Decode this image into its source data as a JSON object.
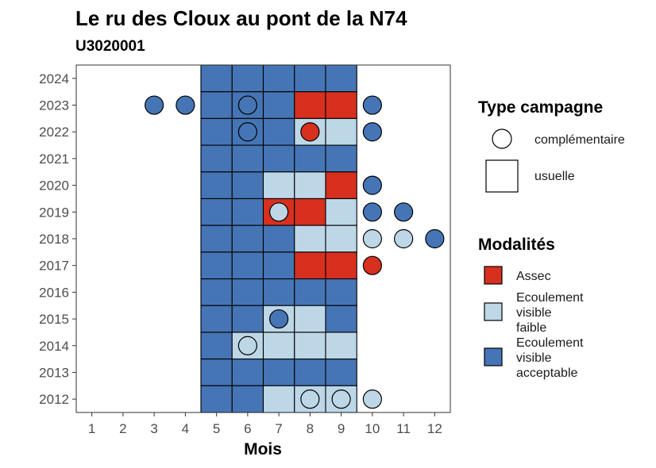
{
  "chart_data": {
    "type": "heatmap",
    "title": "Le ru des Cloux au pont de la N74",
    "subtitle": "U3020001",
    "xlabel": "Mois",
    "ylabel": "",
    "x_ticks": [
      1,
      2,
      3,
      4,
      5,
      6,
      7,
      8,
      9,
      10,
      11,
      12
    ],
    "y_ticks": [
      2012,
      2013,
      2014,
      2015,
      2016,
      2017,
      2018,
      2019,
      2020,
      2021,
      2022,
      2023,
      2024
    ],
    "xlim": [
      0.5,
      12.5
    ],
    "ylim": [
      2011.5,
      2024.5
    ],
    "colors": {
      "assec": "#d7301f",
      "faible": "#bdd7e7",
      "acceptable": "#4575b4"
    },
    "legend_type": {
      "title": "Type campagne",
      "items": [
        {
          "key": "complementaire",
          "label": "complémentaire",
          "shape": "circle"
        },
        {
          "key": "usuelle",
          "label": "usuelle",
          "shape": "square"
        }
      ]
    },
    "legend_modalites": {
      "title": "Modalités",
      "items": [
        {
          "key": "assec",
          "lines": [
            "Assec"
          ]
        },
        {
          "key": "faible",
          "lines": [
            "Ecoulement",
            "visible",
            "faible"
          ]
        },
        {
          "key": "acceptable",
          "lines": [
            "Ecoulement",
            "visible",
            "acceptable"
          ]
        }
      ]
    },
    "usuelle": [
      {
        "year": 2024,
        "months": {
          "5": "acceptable",
          "6": "acceptable",
          "7": "acceptable",
          "8": "acceptable",
          "9": "acceptable"
        }
      },
      {
        "year": 2023,
        "months": {
          "5": "acceptable",
          "6": "acceptable",
          "7": "acceptable",
          "8": "assec",
          "9": "assec"
        }
      },
      {
        "year": 2022,
        "months": {
          "5": "acceptable",
          "6": "acceptable",
          "7": "acceptable",
          "8": "faible",
          "9": "faible"
        }
      },
      {
        "year": 2021,
        "months": {
          "5": "acceptable",
          "6": "acceptable",
          "7": "acceptable",
          "8": "acceptable",
          "9": "acceptable"
        }
      },
      {
        "year": 2020,
        "months": {
          "5": "acceptable",
          "6": "acceptable",
          "7": "faible",
          "8": "faible",
          "9": "assec"
        }
      },
      {
        "year": 2019,
        "months": {
          "5": "acceptable",
          "6": "acceptable",
          "7": "assec",
          "8": "assec",
          "9": "faible"
        }
      },
      {
        "year": 2018,
        "months": {
          "5": "acceptable",
          "6": "acceptable",
          "7": "acceptable",
          "8": "faible",
          "9": "faible"
        }
      },
      {
        "year": 2017,
        "months": {
          "5": "acceptable",
          "6": "acceptable",
          "7": "acceptable",
          "8": "assec",
          "9": "assec"
        }
      },
      {
        "year": 2016,
        "months": {
          "5": "acceptable",
          "6": "acceptable",
          "7": "acceptable",
          "8": "acceptable",
          "9": "acceptable"
        }
      },
      {
        "year": 2015,
        "months": {
          "5": "acceptable",
          "6": "acceptable",
          "7": "faible",
          "8": "faible",
          "9": "acceptable"
        }
      },
      {
        "year": 2014,
        "months": {
          "5": "acceptable",
          "6": "faible",
          "7": "faible",
          "8": "faible",
          "9": "faible"
        }
      },
      {
        "year": 2013,
        "months": {
          "5": "acceptable",
          "6": "acceptable",
          "7": "acceptable",
          "8": "acceptable",
          "9": "acceptable"
        }
      },
      {
        "year": 2012,
        "months": {
          "5": "acceptable",
          "6": "acceptable",
          "7": "faible",
          "8": "faible",
          "9": "faible"
        }
      }
    ],
    "complementaire": [
      {
        "year": 2023,
        "month": 3,
        "value": "acceptable"
      },
      {
        "year": 2023,
        "month": 4,
        "value": "acceptable"
      },
      {
        "year": 2023,
        "month": 6,
        "value": "acceptable"
      },
      {
        "year": 2023,
        "month": 10,
        "value": "acceptable"
      },
      {
        "year": 2022,
        "month": 6,
        "value": "acceptable"
      },
      {
        "year": 2022,
        "month": 8,
        "value": "assec"
      },
      {
        "year": 2022,
        "month": 10,
        "value": "acceptable"
      },
      {
        "year": 2020,
        "month": 10,
        "value": "acceptable"
      },
      {
        "year": 2019,
        "month": 7,
        "value": "faible"
      },
      {
        "year": 2019,
        "month": 10,
        "value": "acceptable"
      },
      {
        "year": 2019,
        "month": 11,
        "value": "acceptable"
      },
      {
        "year": 2018,
        "month": 10,
        "value": "faible"
      },
      {
        "year": 2018,
        "month": 11,
        "value": "faible"
      },
      {
        "year": 2018,
        "month": 12,
        "value": "acceptable"
      },
      {
        "year": 2017,
        "month": 10,
        "value": "assec"
      },
      {
        "year": 2015,
        "month": 7,
        "value": "acceptable"
      },
      {
        "year": 2014,
        "month": 6,
        "value": "faible"
      },
      {
        "year": 2012,
        "month": 8,
        "value": "faible"
      },
      {
        "year": 2012,
        "month": 9,
        "value": "faible"
      },
      {
        "year": 2012,
        "month": 10,
        "value": "faible"
      }
    ]
  }
}
